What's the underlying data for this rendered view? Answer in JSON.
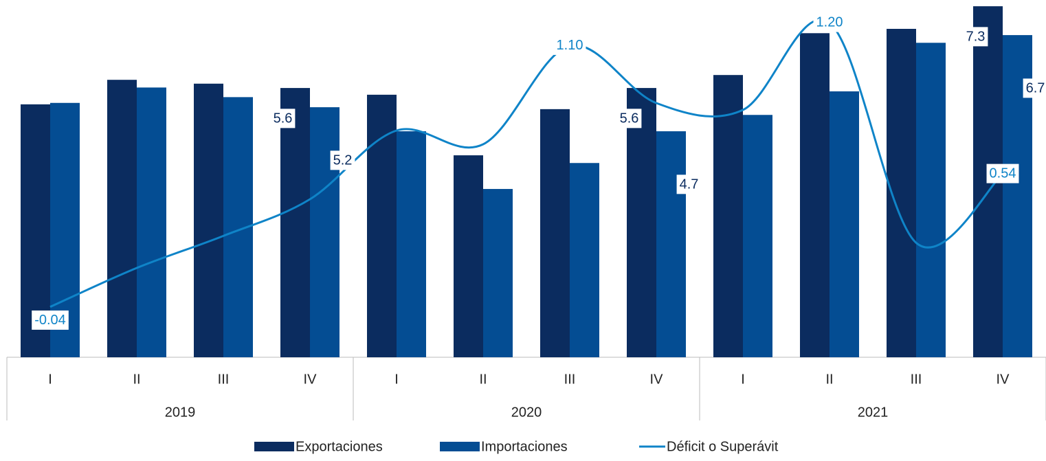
{
  "chart_data": {
    "type": "bar-line",
    "categories": [
      "I",
      "II",
      "III",
      "IV",
      "I",
      "II",
      "III",
      "IV",
      "I",
      "II",
      "III",
      "IV"
    ],
    "group_labels": [
      "2019",
      "2020",
      "2021"
    ],
    "series": [
      {
        "name": "Exportaciones",
        "type": "bar",
        "color": "#0b2c5f",
        "values": [
          5.26,
          5.77,
          5.69,
          5.6,
          5.46,
          4.2,
          5.16,
          5.6,
          5.87,
          6.74,
          6.83,
          7.3
        ],
        "value_labels": [
          null,
          null,
          null,
          "5.6",
          null,
          null,
          null,
          "5.6",
          null,
          null,
          null,
          "7.3"
        ]
      },
      {
        "name": "Importaciones",
        "type": "bar",
        "color": "#044d93",
        "values": [
          5.29,
          5.61,
          5.41,
          5.2,
          4.7,
          3.5,
          4.04,
          4.7,
          5.04,
          5.53,
          6.54,
          6.7
        ],
        "value_labels": [
          null,
          null,
          null,
          "5.2",
          null,
          null,
          null,
          "4.7",
          null,
          null,
          null,
          "6.7"
        ]
      },
      {
        "name": "Déficit o Superávit",
        "type": "line",
        "axis": "y2",
        "color": "#0f84c8",
        "values": [
          -0.04,
          0.13,
          0.27,
          0.43,
          0.73,
          0.67,
          1.1,
          0.85,
          0.82,
          1.2,
          0.24,
          0.54
        ],
        "value_labels": [
          "-0.04",
          null,
          null,
          null,
          null,
          null,
          "1.10",
          null,
          null,
          "1.20",
          null,
          "0.54"
        ]
      }
    ],
    "ylim": [
      0,
      7.43
    ],
    "y2lim": [
      -0.26,
      1.3
    ],
    "legend": "bottom"
  }
}
